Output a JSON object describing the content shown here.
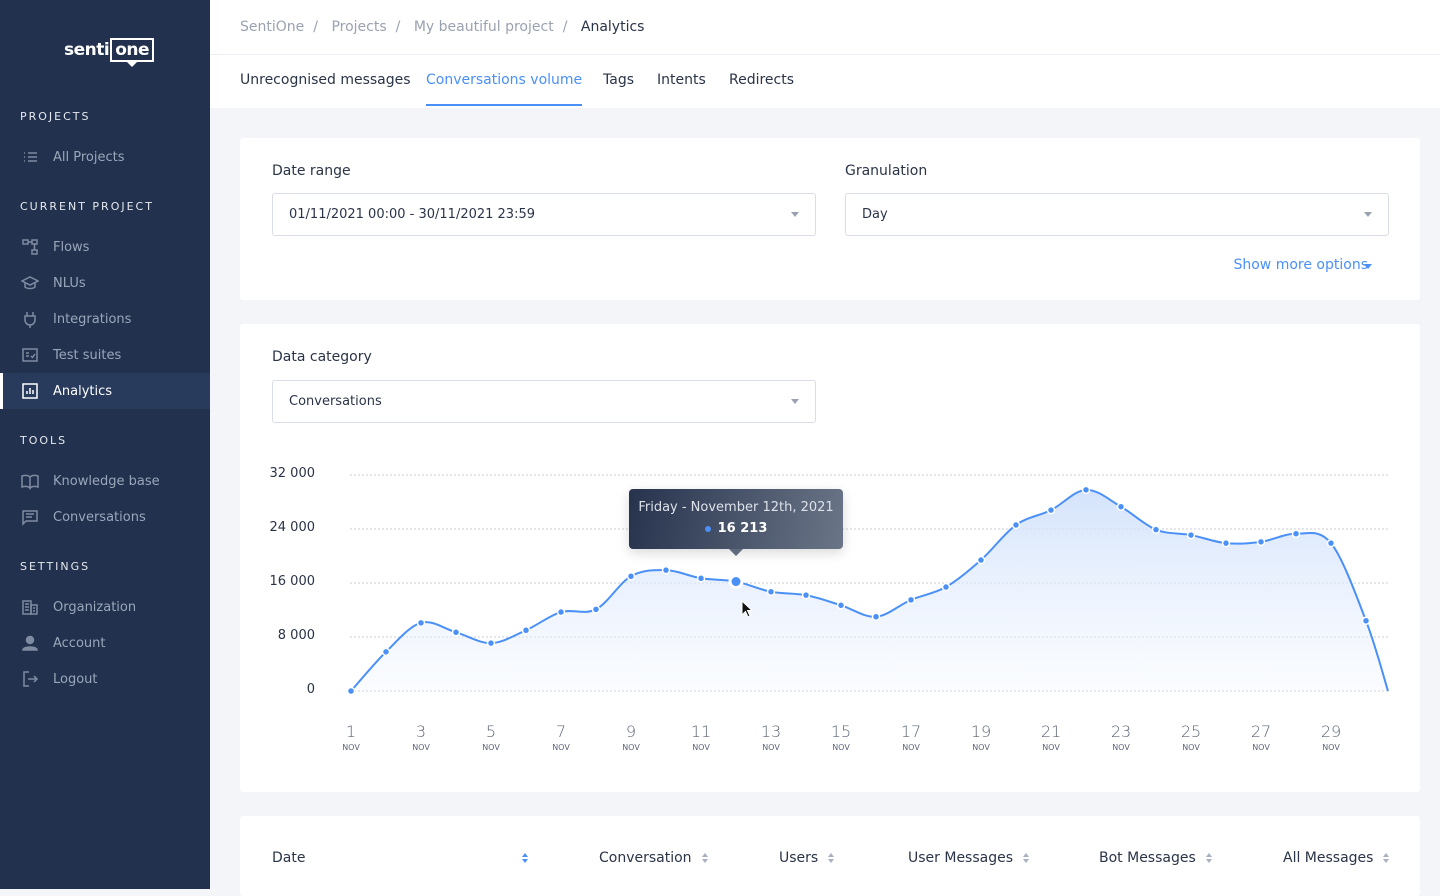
{
  "app": {
    "logo_text_left": "senti",
    "logo_text_right": "one"
  },
  "sidebar": {
    "sections": [
      {
        "title": "PROJECTS",
        "items": [
          {
            "label": "All Projects",
            "icon": "list-icon"
          }
        ]
      },
      {
        "title": "CURRENT PROJECT",
        "items": [
          {
            "label": "Flows",
            "icon": "flows-icon"
          },
          {
            "label": "NLUs",
            "icon": "graduation-cap-icon"
          },
          {
            "label": "Integrations",
            "icon": "plug-icon"
          },
          {
            "label": "Test suites",
            "icon": "checklist-icon"
          },
          {
            "label": "Analytics",
            "icon": "bar-chart-icon",
            "active": true
          }
        ]
      },
      {
        "title": "TOOLS",
        "items": [
          {
            "label": "Knowledge base",
            "icon": "book-icon"
          },
          {
            "label": "Conversations",
            "icon": "chat-icon"
          }
        ]
      },
      {
        "title": "SETTINGS",
        "items": [
          {
            "label": "Organization",
            "icon": "building-icon"
          },
          {
            "label": "Account",
            "icon": "user-icon"
          },
          {
            "label": "Logout",
            "icon": "logout-icon"
          }
        ]
      }
    ]
  },
  "breadcrumb": [
    "SentiOne",
    "Projects",
    "My beautiful project",
    "Analytics"
  ],
  "tabs": [
    {
      "label": "Unrecognised messages"
    },
    {
      "label": "Conversations volume",
      "active": true
    },
    {
      "label": "Tags"
    },
    {
      "label": "Intents"
    },
    {
      "label": "Redirects"
    }
  ],
  "filters": {
    "date_range_label": "Date range",
    "date_range_value": "01/11/2021 00:00 - 30/11/2021 23:59",
    "granulation_label": "Granulation",
    "granulation_value": "Day",
    "show_more": "Show more options"
  },
  "category": {
    "label": "Data category",
    "value": "Conversations"
  },
  "colors": {
    "accent": "#4a90f7",
    "sidebar": "#22314d"
  },
  "chart_data": {
    "type": "area",
    "x": [
      1,
      2,
      3,
      4,
      5,
      6,
      7,
      8,
      9,
      10,
      11,
      12,
      13,
      14,
      15,
      16,
      17,
      18,
      19,
      20,
      21,
      22,
      23,
      24,
      25,
      26,
      27,
      28,
      29,
      30
    ],
    "values": [
      0,
      5800,
      10100,
      8700,
      7100,
      9000,
      11700,
      12100,
      17000,
      17900,
      16700,
      16213,
      14700,
      14200,
      12700,
      11000,
      13500,
      15400,
      19400,
      24600,
      26800,
      29800,
      27300,
      23900,
      23100,
      21900,
      22100,
      23300,
      21900,
      10400
    ],
    "end_value": 0,
    "ylim": [
      0,
      32000
    ],
    "y_ticks": [
      "0",
      "8 000",
      "16 000",
      "24 000",
      "32 000"
    ],
    "x_ticks": [
      "1",
      "3",
      "5",
      "7",
      "9",
      "11",
      "13",
      "15",
      "17",
      "19",
      "21",
      "23",
      "25",
      "27",
      "29"
    ],
    "x_tick_sub": "NOV",
    "grid": true,
    "tooltip": {
      "title": "Friday - November 12th, 2021",
      "value": "16 213"
    }
  },
  "table": {
    "columns": [
      "Date",
      "Conversation",
      "Users",
      "User Messages",
      "Bot Messages",
      "All Messages"
    ]
  }
}
